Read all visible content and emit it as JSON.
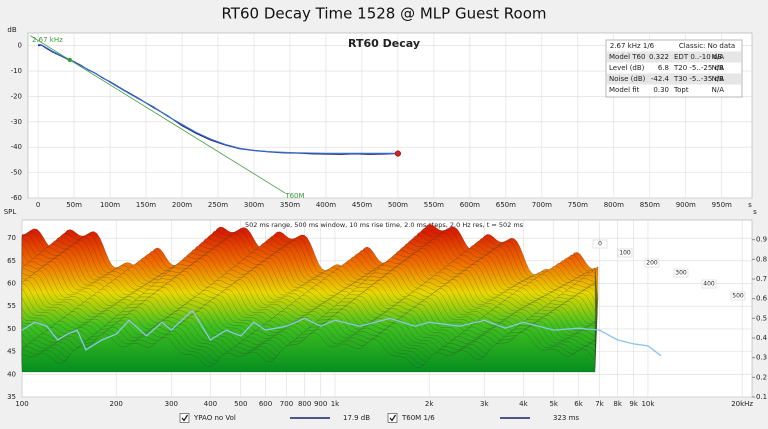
{
  "title": "RT60 Decay Time 1528 @ MLP Guest Room",
  "chart_data": [
    {
      "type": "line",
      "title": "RT60 Decay",
      "y_label": "dB",
      "x_label": "s",
      "annotation": "2.67 kHz",
      "x": [
        0,
        5,
        10,
        20,
        30,
        40,
        50,
        60,
        70,
        80,
        90,
        100,
        120,
        140,
        160,
        180,
        200,
        220,
        240,
        260,
        280,
        300,
        320,
        340,
        360,
        380,
        400,
        420,
        440,
        460,
        480,
        500
      ],
      "series": [
        {
          "color": "#1a2466",
          "values": [
            0,
            0.2,
            -0.8,
            -2.5,
            -3.8,
            -5.2,
            -6.3,
            -7.8,
            -9.6,
            -10.9,
            -12.8,
            -14.2,
            -17.6,
            -20.8,
            -24.3,
            -27.6,
            -31.5,
            -34.6,
            -37.2,
            -39.1,
            -40.6,
            -41.3,
            -41.8,
            -42.2,
            -42.3,
            -42.6,
            -42.7,
            -42.8,
            -42.6,
            -42.8,
            -42.7,
            -42.5
          ]
        },
        {
          "color": "#3b6fd6",
          "values": [
            0.5,
            0.3,
            -0.5,
            -2.2,
            -3.6,
            -5.0,
            -6.4,
            -8.0,
            -9.4,
            -11.0,
            -12.6,
            -14.4,
            -17.8,
            -21.0,
            -24.0,
            -27.8,
            -31.0,
            -34.2,
            -36.8,
            -38.9,
            -40.4,
            -41.2,
            -41.7,
            -42.0,
            -42.2,
            -42.3,
            -42.4,
            -42.4,
            -42.4,
            -42.4,
            -42.4,
            -42.4
          ]
        },
        {
          "name": "T60M",
          "color": "#3a9a3a",
          "x": [
            -11,
            44,
            343
          ],
          "values": [
            4,
            -5.6,
            -58
          ]
        }
      ],
      "end_marker_color": "#d42020",
      "xlim": [
        -14,
        992
      ],
      "xticks": [
        0,
        {
          "value": 50,
          "label": "50m"
        },
        {
          "value": 100,
          "label": "100m"
        },
        {
          "value": 150,
          "label": "150m"
        },
        {
          "value": 200,
          "label": "200m"
        },
        {
          "value": 250,
          "label": "250m"
        },
        {
          "value": 300,
          "label": "300m"
        },
        {
          "value": 350,
          "label": "350m"
        },
        {
          "value": 400,
          "label": "400m"
        },
        {
          "value": 450,
          "label": "450m"
        },
        {
          "value": 500,
          "label": "500m"
        },
        {
          "value": 550,
          "label": "550m"
        },
        {
          "value": 600,
          "label": "600m"
        },
        {
          "value": 650,
          "label": "650m"
        },
        {
          "value": 700,
          "label": "700m"
        },
        {
          "value": 750,
          "label": "750m"
        },
        {
          "value": 800,
          "label": "800m"
        },
        {
          "value": 850,
          "label": "850m"
        },
        {
          "value": 900,
          "label": "900m"
        },
        {
          "value": 950,
          "label": "950m"
        }
      ],
      "ylim": [
        -60,
        5
      ],
      "yticks": [
        0,
        -10,
        -20,
        -30,
        -40,
        -50,
        -60
      ],
      "grid": true,
      "info_table": {
        "header": [
          "2.67 kHz 1/6",
          "Classic: No data"
        ],
        "rows": [
          [
            "Model T60",
            "0.322",
            "EDT 0..-10 dB",
            "N/A"
          ],
          [
            "Level (dB)",
            "6.8",
            "T20 -5..-25 dB",
            "N/A"
          ],
          [
            "Noise (dB)",
            "-42.4",
            "T30 -5..-35 dB",
            "N/A"
          ],
          [
            "Model fit",
            "0.30",
            "Topt",
            "N/A"
          ]
        ]
      }
    },
    {
      "type": "waterfall",
      "y_label": "SPL",
      "y2_label": "s",
      "info": "502 ms range, 500 ms window, 10 ms rise time, 2.0 ms steps, 2.0 Hz res, t = 502 ms",
      "waterfall": {
        "name": "YPAO no Vol",
        "legend_value": "17.9 dB",
        "color": "#1a2466"
      },
      "time_labels": [
        0,
        100,
        200,
        300,
        400,
        500
      ],
      "x": [
        100,
        110,
        120,
        130,
        140,
        150,
        160,
        180,
        200,
        220,
        250,
        280,
        300,
        350,
        400,
        450,
        500,
        550,
        600,
        700,
        800,
        900,
        1000,
        1200,
        1500,
        1800,
        2000,
        2500,
        3000,
        3500,
        4000,
        5000,
        6000,
        7000,
        8000,
        9000,
        10000,
        11000
      ],
      "series": [
        {
          "name": "T60M 1/6",
          "legend_value": "323 ms",
          "color": "#8cc4ea",
          "axis": "y2",
          "values": [
            0.44,
            0.48,
            0.46,
            0.39,
            0.42,
            0.44,
            0.34,
            0.39,
            0.42,
            0.49,
            0.41,
            0.48,
            0.44,
            0.54,
            0.39,
            0.44,
            0.41,
            0.48,
            0.44,
            0.46,
            0.5,
            0.46,
            0.49,
            0.46,
            0.5,
            0.46,
            0.48,
            0.46,
            0.49,
            0.45,
            0.48,
            0.44,
            0.45,
            0.44,
            0.39,
            0.37,
            0.36,
            0.31
          ]
        }
      ],
      "xscale": "log",
      "xlim": [
        100,
        21500
      ],
      "xticks": [
        100,
        200,
        300,
        400,
        500,
        600,
        700,
        800,
        900,
        {
          "value": 1000,
          "label": "1k"
        },
        {
          "value": 2000,
          "label": "2k"
        },
        {
          "value": 3000,
          "label": "3k"
        },
        {
          "value": 4000,
          "label": "4k"
        },
        {
          "value": 5000,
          "label": "5k"
        },
        {
          "value": 6000,
          "label": "6k"
        },
        {
          "value": 7000,
          "label": "7k"
        },
        {
          "value": 8000,
          "label": "8k"
        },
        {
          "value": 9000,
          "label": "9k"
        },
        {
          "value": 10000,
          "label": "10k"
        },
        {
          "value": 20000,
          "label": "20kHz"
        }
      ],
      "ylim": [
        35,
        74
      ],
      "yticks": [
        35,
        40,
        45,
        50,
        55,
        60,
        65,
        70
      ],
      "y2lim": [
        0.1,
        1.0
      ],
      "y2ticks": [
        0.1,
        0.2,
        0.3,
        0.4,
        0.5,
        0.6,
        0.7,
        0.8,
        0.9
      ],
      "grid": true
    }
  ]
}
